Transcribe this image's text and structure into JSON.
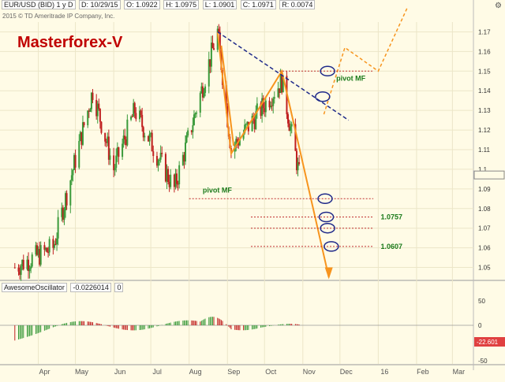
{
  "header": {
    "symbol": "EUR/USD (BID) 1 y D",
    "date": "D: 10/29/15",
    "open": "O: 1.0922",
    "high": "H: 1.0975",
    "low": "L: 1.0901",
    "close": "C: 1.0971",
    "range": "R: 0.0074",
    "copyright": "2015 © TD Ameritrade IP Company, Inc."
  },
  "brand": "Masterforex-V",
  "oscillator": {
    "name": "AwesomeOscillator",
    "value": "-0.0226014",
    "param": "0",
    "price_tag": "-22.601"
  },
  "chart_data": [
    {
      "type": "candlestick",
      "title": "EUR/USD (BID) 1 y D",
      "x_ticks": [
        "Apr",
        "May",
        "Jun",
        "Jul",
        "Aug",
        "Sep",
        "Oct",
        "Nov",
        "Dec",
        "16",
        "Feb",
        "Mar"
      ],
      "y_ticks": [
        1.05,
        1.06,
        1.07,
        1.08,
        1.09,
        1.1,
        1.11,
        1.12,
        1.13,
        1.14,
        1.15,
        1.16,
        1.17
      ],
      "ylim": [
        1.045,
        1.175
      ],
      "grid": true,
      "approx_close_path": [
        {
          "date": "2015-03-13",
          "close": 1.05
        },
        {
          "date": "2015-04-13",
          "close": 1.06
        },
        {
          "date": "2015-05-15",
          "close": 1.14
        },
        {
          "date": "2015-06-01",
          "close": 1.1
        },
        {
          "date": "2015-06-18",
          "close": 1.13
        },
        {
          "date": "2015-07-20",
          "close": 1.09
        },
        {
          "date": "2015-08-24",
          "close": 1.17
        },
        {
          "date": "2015-09-04",
          "close": 1.11
        },
        {
          "date": "2015-10-15",
          "close": 1.145
        },
        {
          "date": "2015-10-29",
          "close": 1.0971
        }
      ],
      "annotations": {
        "trendline": {
          "from": {
            "date": "2015-08-24",
            "price": 1.17
          },
          "to": {
            "date": "2015-12-08",
            "price": 1.125
          }
        },
        "pivot_levels": [
          {
            "price": 1.15,
            "label": "pivot MF"
          },
          {
            "price": 1.085,
            "label": "pivot MF"
          },
          {
            "price": 1.0757,
            "label": "1.0757"
          },
          {
            "price": 1.07,
            "label": ""
          },
          {
            "price": 1.0607,
            "label": "1.0607"
          }
        ],
        "highlighted_price": 1.0971
      }
    },
    {
      "type": "bar",
      "title": "AwesomeOscillator",
      "series_value": -0.0226014,
      "y_ticks": [
        50,
        0,
        -50
      ],
      "zero_line": 0
    }
  ]
}
